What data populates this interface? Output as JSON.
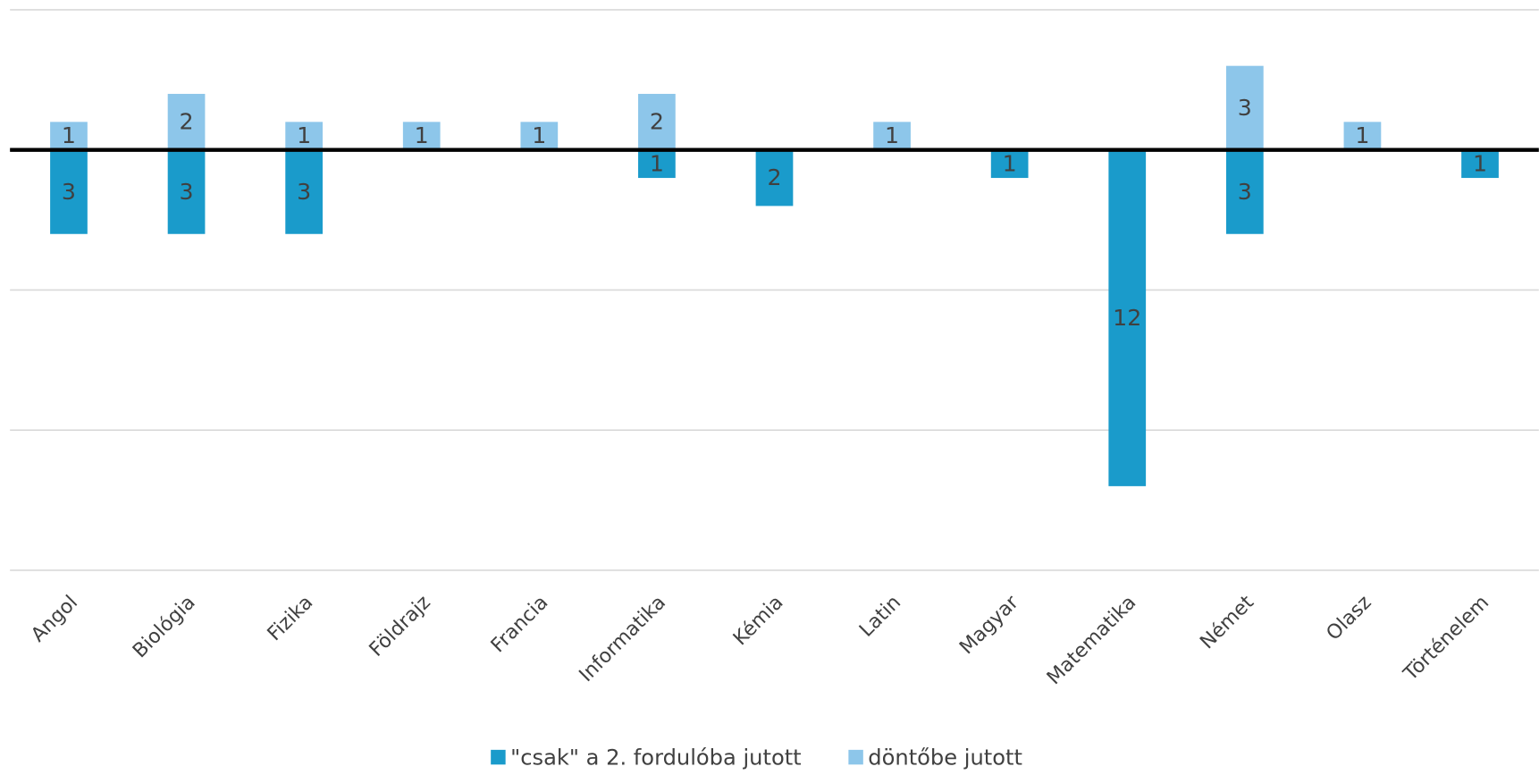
{
  "chart_data": {
    "type": "bar",
    "categories": [
      "Angol",
      "Biológia",
      "Fizika",
      "Földrajz",
      "Francia",
      "Informatika",
      "Kémia",
      "Latin",
      "Magyar",
      "Matematika",
      "Német",
      "Olasz",
      "Történelem"
    ],
    "series": [
      {
        "name": "\"csak\" a 2. fordulóba jutott",
        "color": "#1a9bcb",
        "values": [
          -3,
          -3,
          -3,
          null,
          null,
          -1,
          -2,
          null,
          -1,
          -12,
          -3,
          null,
          -1
        ],
        "value_labels": [
          "3",
          "3",
          "3",
          null,
          null,
          "1",
          "2",
          null,
          "1",
          "12",
          "3",
          null,
          "1"
        ]
      },
      {
        "name": "döntőbe jutott",
        "color": "#8dc6ea",
        "values": [
          1,
          2,
          1,
          1,
          1,
          2,
          null,
          1,
          null,
          null,
          3,
          1,
          null
        ]
      }
    ],
    "ylim": [
      -15,
      5
    ],
    "yticks": [
      -15,
      -10,
      -5,
      0,
      5
    ],
    "grid": true,
    "legend": "bottom"
  }
}
